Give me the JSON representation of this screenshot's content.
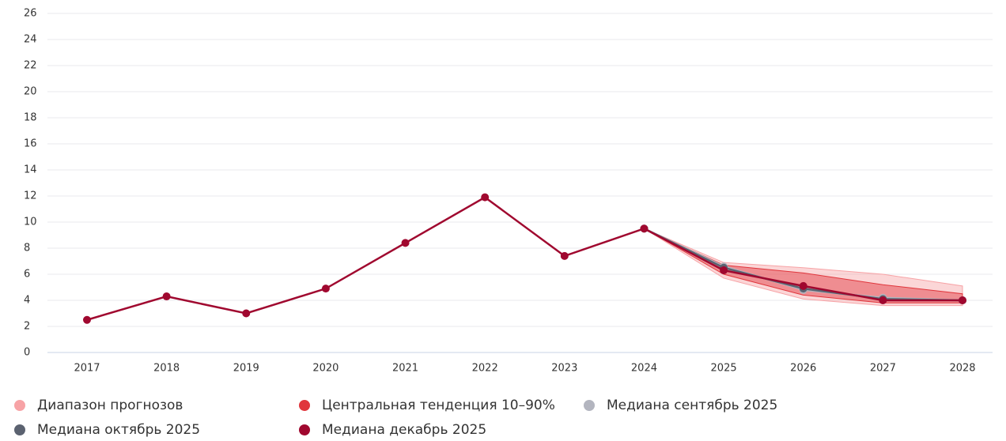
{
  "chart_data": {
    "type": "line",
    "categories": [
      "2017",
      "2018",
      "2019",
      "2020",
      "2021",
      "2022",
      "2023",
      "2024",
      "2025",
      "2026",
      "2027",
      "2028"
    ],
    "ylim": [
      0,
      26
    ],
    "yticks": [
      0,
      2,
      4,
      6,
      8,
      10,
      12,
      14,
      16,
      18,
      20,
      22,
      24,
      26
    ],
    "grid": true,
    "series": [
      {
        "name": "Диапазон прогнозов",
        "color": "#f7a3a6",
        "kind": "band",
        "low": [
          null,
          null,
          null,
          null,
          null,
          null,
          null,
          9.5,
          5.7,
          4.1,
          3.6,
          3.6
        ],
        "high": [
          null,
          null,
          null,
          null,
          null,
          null,
          null,
          9.5,
          6.9,
          6.5,
          6.0,
          5.1
        ]
      },
      {
        "name": "Центральная тенденция 10–90%",
        "color": "#e0363c",
        "kind": "band",
        "low": [
          null,
          null,
          null,
          null,
          null,
          null,
          null,
          9.5,
          6.0,
          4.4,
          3.8,
          3.8
        ],
        "high": [
          null,
          null,
          null,
          null,
          null,
          null,
          null,
          9.5,
          6.7,
          6.1,
          5.2,
          4.5
        ]
      },
      {
        "name": "Медиана сентябрь 2025",
        "color": "#b3b5bf",
        "values": [
          null,
          null,
          null,
          null,
          null,
          null,
          null,
          9.5,
          6.6,
          4.8,
          4.2,
          4.0
        ]
      },
      {
        "name": "Медиана октябрь 2025",
        "color": "#5b6270",
        "values": [
          null,
          null,
          null,
          null,
          null,
          null,
          null,
          9.5,
          6.5,
          4.9,
          4.1,
          4.0
        ]
      },
      {
        "name": "Медиана декабрь 2025",
        "color": "#a0082f",
        "values": [
          2.5,
          4.3,
          3.0,
          4.9,
          8.4,
          11.9,
          7.4,
          9.5,
          6.3,
          5.1,
          4.0,
          4.0
        ]
      }
    ]
  }
}
